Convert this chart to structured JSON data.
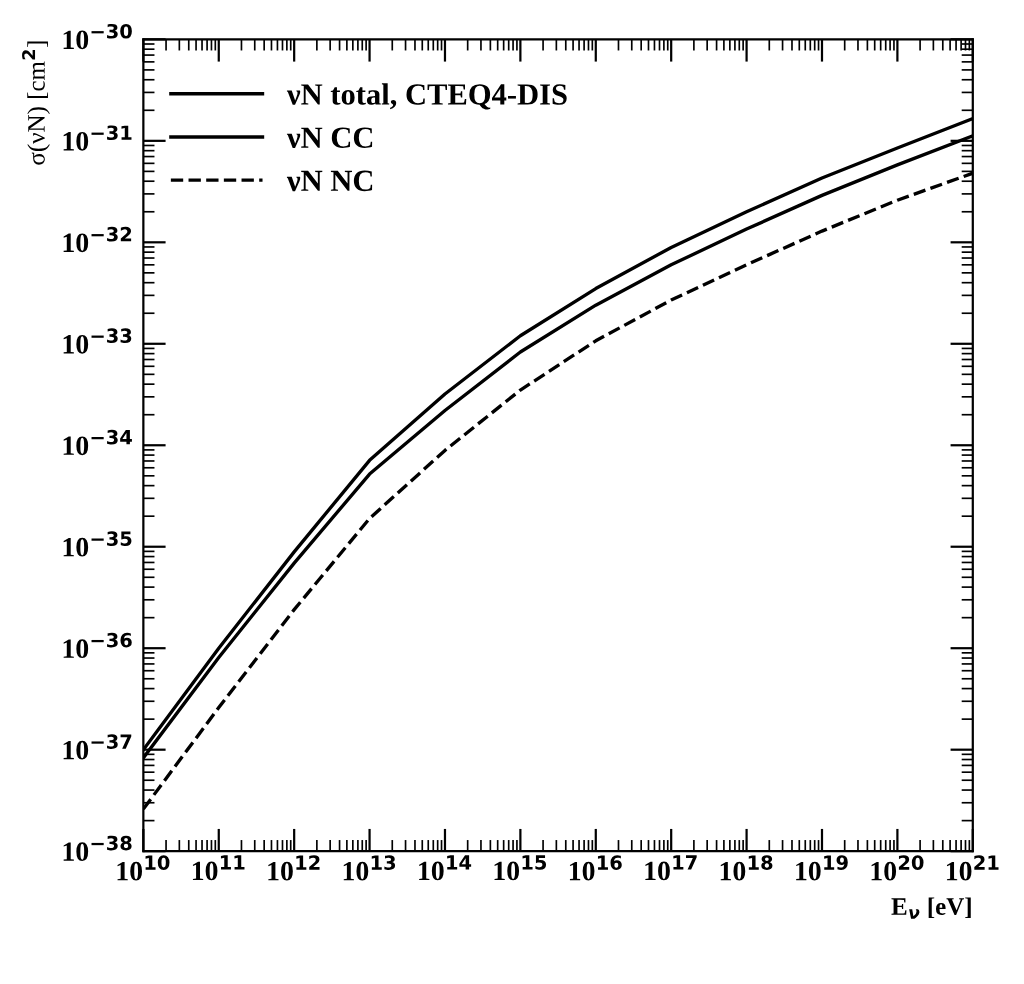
{
  "chart_data": {
    "type": "line",
    "xlabel": "E$_{ν}$ [eV]",
    "ylabel": "σ(νN) [cm$^{2}$]",
    "x": [
      10000000000.0,
      100000000000.0,
      1000000000000.0,
      10000000000000.0,
      100000000000000.0,
      1000000000000000.0,
      1e+16,
      1e+17,
      1e+18,
      1e+19,
      1e+20,
      1e+21
    ],
    "series": [
      {
        "name": "νN total, CTEQ4-DIS",
        "color": "#000000",
        "line_style": "solid",
        "values": [
          1e-37,
          1e-36,
          8.9e-36,
          7.1e-35,
          3.2e-34,
          1.2e-33,
          3.5e-33,
          8.9e-33,
          2e-32,
          4.3e-32,
          8.5e-32,
          1.66e-31
        ]
      },
      {
        "name": "νN CC",
        "color": "#000000",
        "line_style": "solid",
        "values": [
          8.3e-38,
          8.1e-37,
          6.9e-36,
          5.2e-35,
          2.2e-34,
          8.3e-34,
          2.4e-33,
          6e-33,
          1.35e-32,
          2.9e-32,
          5.8e-32,
          1.12e-31
        ]
      },
      {
        "name": "νN NC",
        "color": "#000000",
        "line_style": "dashed",
        "values": [
          2.6e-38,
          2.6e-37,
          2.4e-36,
          1.9e-35,
          8.9e-35,
          3.5e-34,
          1.07e-33,
          2.7e-33,
          6e-33,
          1.29e-32,
          2.6e-32,
          4.8e-32
        ]
      }
    ],
    "log": "xy",
    "xlim": [
      10000000000.0,
      1e+21
    ],
    "ylim": [
      1e-38,
      1e-30
    ],
    "xticks": [
      {
        "value": 10000000000.0,
        "label": "10$^{10}$"
      },
      {
        "value": 100000000000.0,
        "label": "10$^{11}$"
      },
      {
        "value": 1000000000000.0,
        "label": "10$^{12}$"
      },
      {
        "value": 10000000000000.0,
        "label": "10$^{13}$"
      },
      {
        "value": 100000000000000.0,
        "label": "10$^{14}$"
      },
      {
        "value": 1000000000000000.0,
        "label": "10$^{15}$"
      },
      {
        "value": 1e+16,
        "label": "10$^{16}$"
      },
      {
        "value": 1e+17,
        "label": "10$^{17}$"
      },
      {
        "value": 1e+18,
        "label": "10$^{18}$"
      },
      {
        "value": 1e+19,
        "label": "10$^{19}$"
      },
      {
        "value": 1e+20,
        "label": "10$^{20}$"
      },
      {
        "value": 1e+21,
        "label": "10$^{21}$"
      }
    ],
    "yticks": [
      {
        "value": 1e-38,
        "label": "10$^{−38}$"
      },
      {
        "value": 1e-37,
        "label": "10$^{−37}$"
      },
      {
        "value": 1e-36,
        "label": "10$^{−36}$"
      },
      {
        "value": 1e-35,
        "label": "10$^{−35}$"
      },
      {
        "value": 1e-34,
        "label": "10$^{−34}$"
      },
      {
        "value": 1e-33,
        "label": "10$^{−33}$"
      },
      {
        "value": 1e-32,
        "label": "10$^{−32}$"
      },
      {
        "value": 1e-31,
        "label": "10$^{−31}$"
      },
      {
        "value": 1e-30,
        "label": "10$^{−30}$"
      }
    ],
    "grid": false,
    "legend": "top left",
    "marker": "none"
  }
}
